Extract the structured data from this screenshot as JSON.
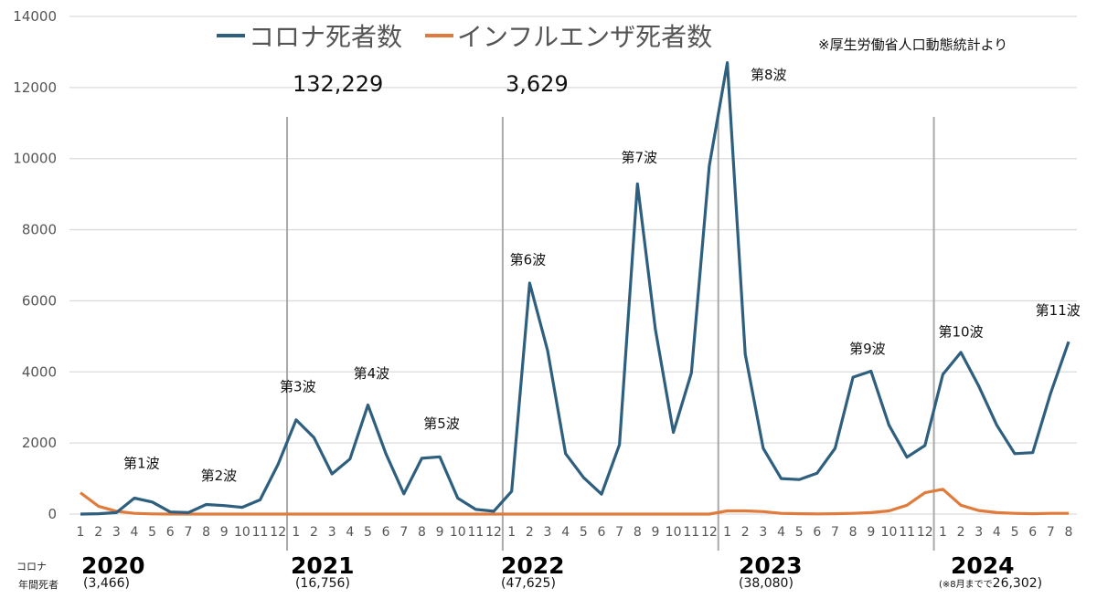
{
  "chart_data": {
    "type": "line",
    "title": "",
    "xlabel": "",
    "ylabel": "",
    "ylim": [
      0,
      14000
    ],
    "yticks": [
      0,
      2000,
      4000,
      6000,
      8000,
      10000,
      12000,
      14000
    ],
    "grid": true,
    "legend_position": "top",
    "months": [
      1,
      2,
      3,
      4,
      5,
      6,
      7,
      8,
      9,
      10,
      11,
      12,
      1,
      2,
      3,
      4,
      5,
      6,
      7,
      8,
      9,
      10,
      11,
      12,
      1,
      2,
      3,
      4,
      5,
      6,
      7,
      8,
      9,
      10,
      11,
      12,
      1,
      2,
      3,
      4,
      5,
      6,
      7,
      8,
      9,
      10,
      11,
      12,
      1,
      2,
      3,
      4,
      5,
      6,
      7,
      8
    ],
    "series": [
      {
        "name": "コロナ死者数",
        "color": "#2e5f7f",
        "values": [
          0,
          10,
          40,
          450,
          340,
          60,
          40,
          270,
          240,
          190,
          400,
          1400,
          2650,
          2150,
          1130,
          1550,
          3070,
          1700,
          570,
          1570,
          1610,
          450,
          130,
          80,
          640,
          6500,
          4600,
          1700,
          1030,
          560,
          1950,
          9290,
          5200,
          2300,
          3970,
          9800,
          12700,
          4500,
          1850,
          1000,
          970,
          1150,
          1850,
          3850,
          4020,
          2500,
          1600,
          1930,
          3930,
          4550,
          3600,
          2500,
          1700,
          1730,
          3400,
          4850
        ]
      },
      {
        "name": "インフルエンザ死者数",
        "color": "#e07b3c",
        "values": [
          600,
          220,
          80,
          20,
          5,
          0,
          0,
          0,
          0,
          0,
          0,
          0,
          0,
          0,
          0,
          0,
          0,
          0,
          0,
          0,
          0,
          0,
          0,
          0,
          0,
          0,
          0,
          0,
          0,
          0,
          0,
          0,
          0,
          0,
          0,
          0,
          90,
          90,
          70,
          20,
          10,
          5,
          10,
          20,
          40,
          90,
          250,
          600,
          700,
          250,
          100,
          40,
          20,
          10,
          20,
          20
        ]
      }
    ],
    "annotations": {
      "waves": [
        {
          "label": "第1波",
          "month_index": 3.4,
          "value": 1300
        },
        {
          "label": "第2波",
          "month_index": 7.7,
          "value": 950
        },
        {
          "label": "第3波",
          "month_index": 12.1,
          "value": 3450
        },
        {
          "label": "第4波",
          "month_index": 16.2,
          "value": 3830
        },
        {
          "label": "第5波",
          "month_index": 20.1,
          "value": 2420
        },
        {
          "label": "第6波",
          "month_index": 24.9,
          "value": 7030
        },
        {
          "label": "第7波",
          "month_index": 31.1,
          "value": 9900
        },
        {
          "label": "第8波",
          "month_index": 38.3,
          "value": 12230
        },
        {
          "label": "第9波",
          "month_index": 43.8,
          "value": 4520
        },
        {
          "label": "第10波",
          "month_index": 49.0,
          "value": 5000
        },
        {
          "label": "第11波",
          "month_index": 54.4,
          "value": 5600
        }
      ],
      "corona_total": "132,229",
      "flu_total": "3,629",
      "source_note": "※厚生労働省人口動態統計より"
    },
    "years": [
      {
        "year": "2020",
        "annual": "(3,466)"
      },
      {
        "year": "2021",
        "annual": "(16,756)"
      },
      {
        "year": "2022",
        "annual": "(47,625)"
      },
      {
        "year": "2023",
        "annual": "(38,080)"
      },
      {
        "year": "2024",
        "annual_prefix": "(※8月までで",
        "annual": "26,302)"
      }
    ],
    "row_label_line1": "コロナ",
    "row_label_line2": "年間死者"
  }
}
